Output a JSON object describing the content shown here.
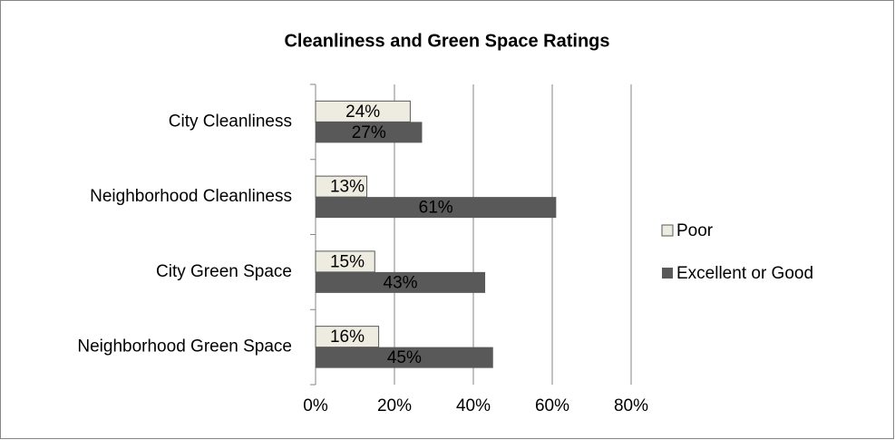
{
  "chart_data": {
    "type": "bar",
    "orientation": "horizontal",
    "title": "Cleanliness and Green Space Ratings",
    "categories": [
      "City Cleanliness",
      "Neighborhood Cleanliness",
      "City Green Space",
      "Neighborhood Green Space"
    ],
    "series": [
      {
        "name": "Poor",
        "color": "#eeece1",
        "values": [
          24,
          13,
          15,
          16
        ],
        "value_labels": [
          "24%",
          "13%",
          "15%",
          "16%"
        ]
      },
      {
        "name": "Excellent or Good",
        "color": "#595959",
        "values": [
          27,
          61,
          43,
          45
        ],
        "value_labels": [
          "27%",
          "61%",
          "43%",
          "45%"
        ]
      }
    ],
    "xlim": [
      0,
      80
    ],
    "xticks": [
      {
        "value": 0,
        "label": "0%"
      },
      {
        "value": 20,
        "label": "20%"
      },
      {
        "value": 40,
        "label": "40%"
      },
      {
        "value": 60,
        "label": "60%"
      },
      {
        "value": 80,
        "label": "80%"
      }
    ],
    "grid": true,
    "legend": "right"
  }
}
